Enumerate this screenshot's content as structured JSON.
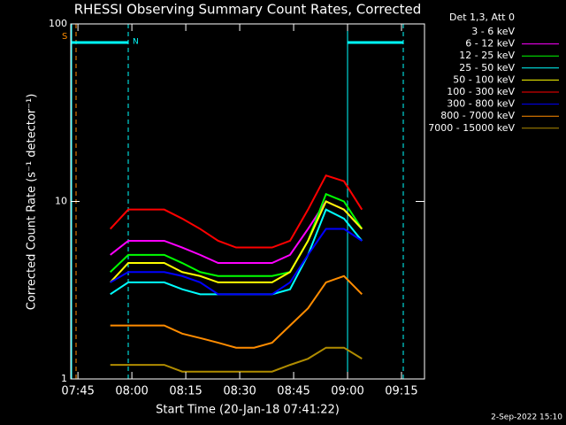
{
  "chart_data": {
    "type": "line",
    "title": "RHESSI Observing Summary Count Rates, Corrected",
    "x_label": "Start Time (20-Jan-18 07:41:22)",
    "y_label": "Corrected Count Rate (s⁻¹ detector⁻¹)",
    "legend_title": "Det 1,3, Att 0",
    "footer": "2-Sep-2022 15:10",
    "annotations": [
      "S",
      "N"
    ],
    "log_y": true,
    "legend": "outside-right",
    "x": [
      474,
      479,
      484,
      489,
      494,
      499,
      504,
      509,
      514,
      519,
      524,
      529,
      534,
      539,
      544
    ],
    "xlim": [
      463,
      561.4
    ],
    "xticks": [
      {
        "value": 465,
        "label": "07:45"
      },
      {
        "value": 480,
        "label": "08:00"
      },
      {
        "value": 495,
        "label": "08:15"
      },
      {
        "value": 510,
        "label": "08:30"
      },
      {
        "value": 525,
        "label": "08:45"
      },
      {
        "value": 540,
        "label": "09:00"
      },
      {
        "value": 555,
        "label": "09:15"
      }
    ],
    "ylim": [
      1,
      100
    ],
    "yticks": [
      1,
      10,
      100
    ],
    "series": [
      {
        "name": "3 - 6 keV",
        "color": "#000000",
        "values": [
          6,
          7,
          7,
          7,
          6.5,
          6,
          5,
          5,
          5,
          5,
          5.5,
          8,
          12,
          11,
          8
        ]
      },
      {
        "name": "6 - 12 keV",
        "color": "#ff00ff",
        "values": [
          5,
          6,
          6,
          6,
          5.5,
          5,
          4.5,
          4.5,
          4.5,
          4.5,
          5,
          7,
          10,
          9,
          7
        ]
      },
      {
        "name": "12 - 25 keV",
        "color": "#00ff00",
        "values": [
          4,
          5,
          5,
          5,
          4.5,
          4,
          3.8,
          3.8,
          3.8,
          3.8,
          4,
          6,
          11,
          10,
          7
        ]
      },
      {
        "name": "25 - 50 keV",
        "color": "#00ffff",
        "values": [
          3,
          3.5,
          3.5,
          3.5,
          3.2,
          3,
          3,
          3,
          3,
          3,
          3.2,
          5,
          9,
          8,
          6
        ]
      },
      {
        "name": "50 - 100 keV",
        "color": "#ffff00",
        "values": [
          3.5,
          4.5,
          4.5,
          4.5,
          4,
          3.8,
          3.5,
          3.5,
          3.5,
          3.5,
          4,
          6,
          10,
          9,
          7
        ]
      },
      {
        "name": "100 - 300 keV",
        "color": "#ff0000",
        "values": [
          7,
          9,
          9,
          9,
          8,
          7,
          6,
          5.5,
          5.5,
          5.5,
          6,
          9,
          14,
          13,
          9
        ]
      },
      {
        "name": "300 - 800 keV",
        "color": "#0000ff",
        "values": [
          3.5,
          4,
          4,
          4,
          3.8,
          3.5,
          3,
          3,
          3,
          3,
          3.5,
          5,
          7,
          7,
          6
        ]
      },
      {
        "name": "800 - 7000 keV",
        "color": "#ff8c00",
        "values": [
          2,
          2,
          2,
          2,
          1.8,
          1.7,
          1.6,
          1.5,
          1.5,
          1.6,
          2,
          2.5,
          3.5,
          3.8,
          3
        ]
      },
      {
        "name": "7000 - 15000 keV",
        "color": "#b08c00",
        "values": [
          1.2,
          1.2,
          1.2,
          1.2,
          1.1,
          1.1,
          1.1,
          1.1,
          1.1,
          1.1,
          1.2,
          1.3,
          1.5,
          1.5,
          1.3
        ]
      }
    ]
  }
}
